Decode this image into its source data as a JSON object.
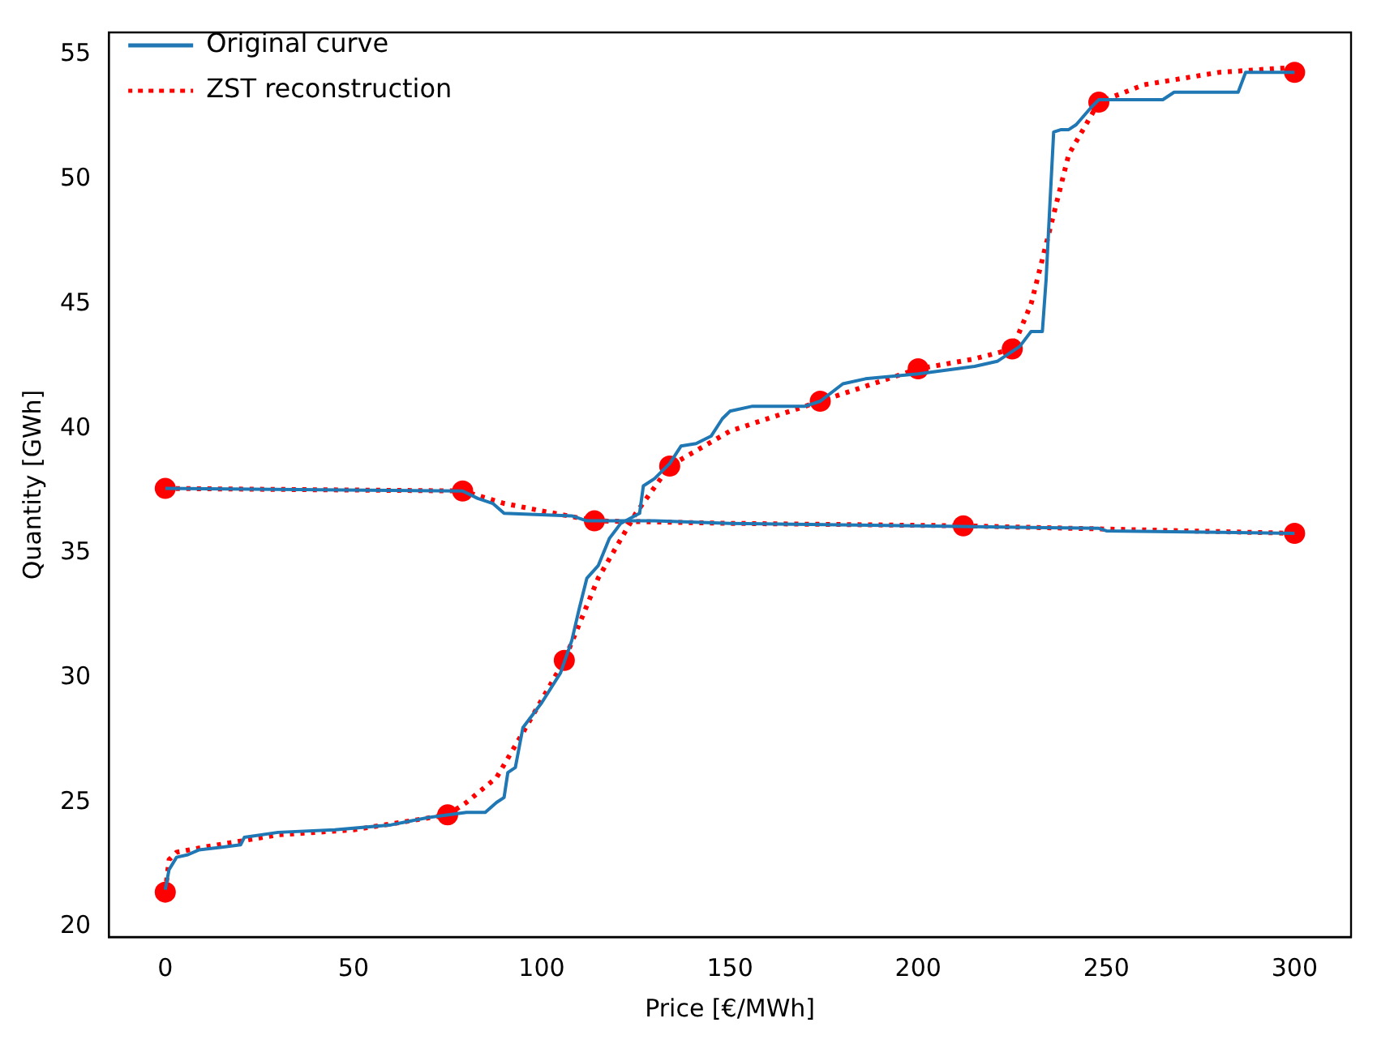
{
  "chart_data": {
    "type": "line",
    "xlabel": "Price [€/MWh]",
    "ylabel": "Quantity [GWh]",
    "xlim": [
      -15,
      315
    ],
    "xticks": [
      0,
      50,
      100,
      150,
      200,
      250,
      300
    ],
    "ylim": [
      19.6,
      55.9
    ],
    "yticks": [
      20,
      25,
      30,
      35,
      40,
      45,
      50,
      55
    ],
    "grid": false,
    "legend": "top left",
    "series": [
      {
        "name": "Original curve",
        "line_style": "solid",
        "marker": "none",
        "color": "#1f77b4",
        "x": [
          0,
          1,
          3,
          6,
          9,
          15,
          20,
          21,
          30,
          45,
          60,
          70,
          80,
          85,
          88,
          90,
          91,
          93,
          95,
          100,
          105,
          108,
          110,
          112,
          115,
          118,
          121,
          126,
          127,
          130,
          134,
          137,
          141,
          145,
          148,
          150,
          156,
          170,
          174,
          180,
          186,
          200,
          215,
          221,
          224,
          227,
          230,
          233,
          234,
          235,
          236,
          238,
          240,
          242,
          246,
          248,
          265,
          268,
          285,
          287,
          300
        ],
        "values": [
          21.5,
          22.3,
          22.8,
          22.9,
          23.1,
          23.2,
          23.3,
          23.6,
          23.8,
          23.9,
          24.1,
          24.4,
          24.6,
          24.6,
          25.0,
          25.2,
          26.2,
          26.4,
          28.0,
          29.0,
          30.2,
          31.5,
          32.8,
          34.0,
          34.5,
          35.6,
          36.2,
          36.6,
          37.7,
          38.0,
          38.6,
          39.3,
          39.4,
          39.7,
          40.4,
          40.7,
          40.9,
          40.9,
          41.1,
          41.8,
          42.0,
          42.2,
          42.5,
          42.7,
          43.0,
          43.3,
          43.9,
          43.9,
          46.0,
          49.0,
          51.9,
          52.0,
          52.0,
          52.2,
          52.9,
          53.2,
          53.2,
          53.5,
          53.5,
          54.3,
          54.3
        ]
      },
      {
        "line_style": "solid",
        "marker": "none",
        "color": "#1f77b4",
        "x": [
          0,
          79,
          83,
          87,
          90,
          108,
          112,
          130,
          150,
          200,
          248,
          250,
          300
        ],
        "values": [
          37.6,
          37.5,
          37.2,
          37.0,
          36.6,
          36.5,
          36.3,
          36.3,
          36.2,
          36.1,
          36.0,
          35.9,
          35.8
        ]
      },
      {
        "name": "ZST reconstruction",
        "line_style": "dotted",
        "marker": "none",
        "color": "#ff0000",
        "x": [
          0,
          1,
          3,
          10,
          30,
          50,
          75,
          80,
          88,
          95,
          106,
          115,
          125,
          134,
          150,
          174,
          200,
          215,
          225,
          230,
          235,
          240,
          248,
          260,
          280,
          300
        ],
        "values": [
          21.4,
          22.7,
          23.0,
          23.2,
          23.7,
          23.9,
          24.5,
          25.0,
          26.0,
          27.8,
          30.7,
          34.0,
          36.6,
          38.5,
          39.9,
          41.1,
          42.4,
          42.8,
          43.2,
          45.0,
          48.0,
          51.0,
          53.1,
          53.8,
          54.3,
          54.5
        ]
      },
      {
        "line_style": "dotted",
        "marker": "none",
        "color": "#ff0000",
        "x": [
          0,
          79,
          90,
          100,
          114,
          150,
          212,
          300
        ],
        "values": [
          37.6,
          37.5,
          37.0,
          36.7,
          36.3,
          36.2,
          36.1,
          35.8
        ]
      },
      {
        "type": "scatter",
        "marker": "circle",
        "color": "#ff0000",
        "x": [
          0,
          75,
          106,
          134,
          174,
          200,
          225,
          248,
          300,
          0,
          79,
          114,
          212,
          300
        ],
        "values": [
          21.4,
          24.5,
          30.7,
          38.5,
          41.1,
          42.4,
          43.2,
          53.1,
          54.3,
          37.6,
          37.5,
          36.3,
          36.1,
          35.8
        ]
      }
    ]
  }
}
